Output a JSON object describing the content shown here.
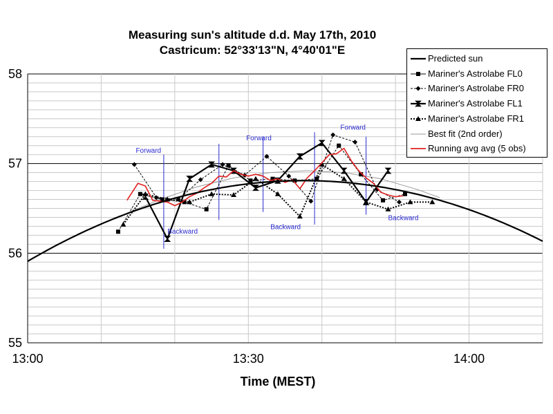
{
  "chart_data": {
    "type": "line",
    "title": "Measuring sun's altitude d.d. May 17th, 2010",
    "subtitle": "Castricum: 52°33'13\"N, 4°40'01\"E",
    "xlabel": "Time (MEST)",
    "ylabel": "",
    "xlim": [
      0,
      70
    ],
    "ylim": [
      55,
      58
    ],
    "x_ticks": [
      {
        "value": 0,
        "label": "13:00"
      },
      {
        "value": 30,
        "label": "13:30"
      },
      {
        "value": 60,
        "label": "14:00"
      }
    ],
    "y_ticks": [
      {
        "value": 55,
        "label": "55"
      },
      {
        "value": 56,
        "label": "56"
      },
      {
        "value": 57,
        "label": "57"
      },
      {
        "value": 58,
        "label": "58"
      }
    ],
    "grid": true,
    "legend_position": "top-right",
    "series": [
      {
        "name": "Predicted sun",
        "style": "line-thick",
        "color": "#000000",
        "x": [
          0,
          5,
          10,
          15,
          20,
          25,
          30,
          35,
          40,
          45,
          50,
          55,
          60,
          65,
          70
        ],
        "y": [
          56.0,
          56.2,
          56.38,
          56.52,
          56.64,
          56.73,
          56.78,
          56.81,
          56.81,
          56.78,
          56.73,
          56.65,
          56.55,
          56.41,
          56.22
        ]
      },
      {
        "name": "Mariner's Astrolabe FL0",
        "style": "dashed",
        "marker": "square",
        "color": "#000000",
        "x": [
          12.3,
          15.3,
          18.3,
          21.3,
          24.3,
          27.3,
          30.3,
          33.3,
          36.3,
          39.3,
          42.3,
          45.3,
          48.3,
          51.3
        ],
        "y": [
          56.24,
          56.66,
          56.6,
          56.57,
          56.49,
          56.98,
          56.81,
          56.83,
          56.81,
          56.83,
          57.2,
          56.88,
          56.59,
          56.66
        ]
      },
      {
        "name": "Mariner's Astrolabe FR0",
        "style": "dashed",
        "marker": "diamond",
        "color": "#000000",
        "x": [
          14.5,
          17.5,
          20.5,
          23.5,
          26.5,
          29.5,
          32.5,
          35.5,
          38.5,
          41.5,
          44.5,
          47.5,
          50.5
        ],
        "y": [
          56.99,
          56.62,
          56.6,
          56.82,
          56.99,
          56.87,
          57.08,
          56.86,
          56.58,
          57.32,
          57.24,
          56.71,
          56.57
        ]
      },
      {
        "name": "Mariner's Astrolabe FL1",
        "style": "solid-thick",
        "marker": "hourglass",
        "color": "#000000",
        "x": [
          16.0,
          19.0,
          22.0,
          25.0,
          28.0,
          31.0,
          34.0,
          37.0,
          40.0,
          43.0,
          46.0,
          49.0
        ],
        "y": [
          56.63,
          56.16,
          56.83,
          56.99,
          56.92,
          56.73,
          56.81,
          57.08,
          57.23,
          56.92,
          56.57,
          56.92
        ]
      },
      {
        "name": "Mariner's Astrolabe FR1",
        "style": "dotted-thick",
        "marker": "triangle",
        "color": "#000000",
        "x": [
          13.0,
          16.0,
          19.0,
          22.0,
          25.0,
          28.0,
          31.0,
          34.0,
          37.0,
          40.0,
          43.0,
          46.0,
          49.0,
          52.0,
          55.0
        ],
        "y": [
          56.32,
          56.66,
          56.6,
          56.57,
          56.66,
          56.65,
          56.83,
          56.66,
          56.41,
          56.99,
          56.83,
          56.57,
          56.49,
          56.57,
          56.57
        ]
      },
      {
        "name": "Best fit (2nd order)",
        "style": "thin",
        "color": "#999999",
        "x": [
          13,
          18,
          23,
          28,
          33,
          38,
          43,
          48,
          53,
          56
        ],
        "y": [
          56.43,
          56.6,
          56.74,
          56.84,
          56.9,
          56.92,
          56.9,
          56.83,
          56.71,
          56.62
        ]
      },
      {
        "name": "Running avg avg (5 obs)",
        "style": "solid",
        "color": "#e02020",
        "x": [
          13.5,
          15,
          16,
          17,
          18,
          19,
          20,
          21,
          22,
          23,
          24,
          25,
          26,
          27,
          28,
          29,
          30,
          31,
          32,
          33,
          34,
          35,
          36,
          37,
          38,
          39,
          40,
          41,
          42,
          43,
          44,
          45,
          46,
          47,
          48,
          49,
          50,
          51
        ],
        "y": [
          56.59,
          56.78,
          56.75,
          56.59,
          56.58,
          56.57,
          56.53,
          56.57,
          56.63,
          56.67,
          56.73,
          56.78,
          56.86,
          56.85,
          56.92,
          56.88,
          56.86,
          56.88,
          56.86,
          56.81,
          56.83,
          56.79,
          56.82,
          56.72,
          56.84,
          56.92,
          57.01,
          57.1,
          57.11,
          57.17,
          57.03,
          56.92,
          56.84,
          56.78,
          56.68,
          56.65,
          56.63,
          56.64
        ]
      }
    ],
    "annotations": [
      {
        "text": "Forward",
        "x": 14.7,
        "y": 57.12
      },
      {
        "text": "Backward",
        "x": 19.0,
        "y": 56.22
      },
      {
        "text": "Forward",
        "x": 29.7,
        "y": 57.26
      },
      {
        "text": "Backward",
        "x": 33.0,
        "y": 56.27
      },
      {
        "text": "Forward",
        "x": 42.5,
        "y": 57.38
      },
      {
        "text": "Backward",
        "x": 49.0,
        "y": 56.37
      }
    ],
    "markers_vertical": [
      {
        "x": 18.5,
        "y_from": 56.05,
        "y_to": 57.1
      },
      {
        "x": 26.0,
        "y_from": 56.37,
        "y_to": 57.22
      },
      {
        "x": 32.0,
        "y_from": 56.46,
        "y_to": 57.3
      },
      {
        "x": 39.0,
        "y_from": 56.32,
        "y_to": 57.35
      },
      {
        "x": 46.0,
        "y_from": 56.43,
        "y_to": 57.3
      }
    ]
  }
}
